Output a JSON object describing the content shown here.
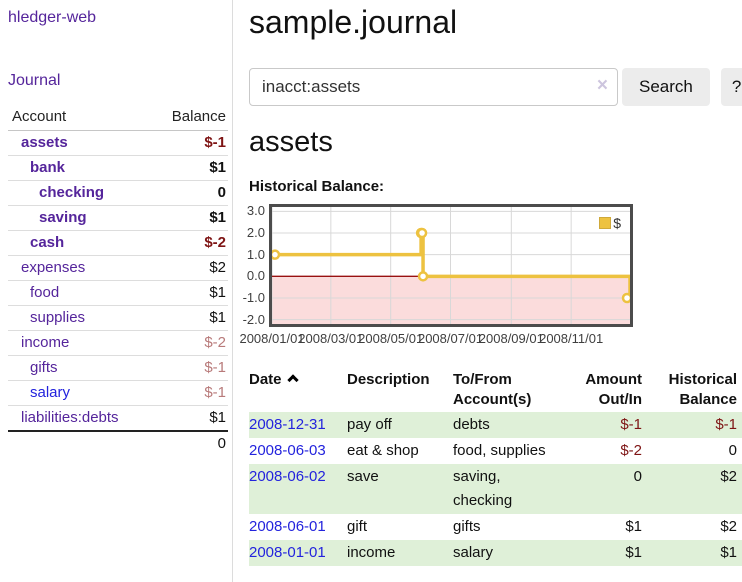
{
  "app": {
    "brand": "hledger-web",
    "nav_journal": "Journal"
  },
  "sidebar": {
    "header": {
      "account": "Account",
      "balance": "Balance"
    },
    "accounts": [
      {
        "name": "assets",
        "depth": 0,
        "bold": true,
        "link": "purple",
        "balance": "$-1",
        "tone": "neg-strong"
      },
      {
        "name": "bank",
        "depth": 1,
        "bold": true,
        "link": "purple",
        "balance": "$1",
        "tone": ""
      },
      {
        "name": "checking",
        "depth": 2,
        "bold": true,
        "link": "purple",
        "balance": "0",
        "tone": ""
      },
      {
        "name": "saving",
        "depth": 2,
        "bold": true,
        "link": "purple",
        "balance": "$1",
        "tone": ""
      },
      {
        "name": "cash",
        "depth": 1,
        "bold": true,
        "link": "purple",
        "balance": "$-2",
        "tone": "neg-strong"
      },
      {
        "name": "expenses",
        "depth": 0,
        "bold": false,
        "link": "purple",
        "balance": "$2",
        "tone": ""
      },
      {
        "name": "food",
        "depth": 1,
        "bold": false,
        "link": "purple",
        "balance": "$1",
        "tone": ""
      },
      {
        "name": "supplies",
        "depth": 1,
        "bold": false,
        "link": "purple",
        "balance": "$1",
        "tone": ""
      },
      {
        "name": "income",
        "depth": 0,
        "bold": false,
        "link": "purple",
        "balance": "$-2",
        "tone": "neg-soft"
      },
      {
        "name": "gifts",
        "depth": 1,
        "bold": false,
        "link": "purple",
        "balance": "$-1",
        "tone": "neg-soft"
      },
      {
        "name": "salary",
        "depth": 1,
        "bold": false,
        "link": "blue",
        "balance": "$-1",
        "tone": "neg-soft"
      },
      {
        "name": "liabilities:debts",
        "depth": 0,
        "bold": false,
        "link": "purple",
        "balance": "$1",
        "tone": ""
      }
    ],
    "total": "0"
  },
  "main": {
    "title": "sample.journal",
    "search": {
      "value": "inacct:assets",
      "clear_icon": "×",
      "button": "Search",
      "help": "?"
    },
    "account_heading": "assets",
    "chart_title": "Historical Balance:"
  },
  "chart_data": {
    "type": "line",
    "step": true,
    "title": "Historical Balance:",
    "series": [
      {
        "name": "$",
        "color": "#edc240",
        "points": [
          {
            "x": "2008-01-01",
            "y": 1
          },
          {
            "x": "2008-06-01",
            "y": 2
          },
          {
            "x": "2008-06-02",
            "y": 2
          },
          {
            "x": "2008-06-03",
            "y": 0
          },
          {
            "x": "2008-12-31",
            "y": -1
          }
        ]
      }
    ],
    "x_range": [
      "2008-01-01",
      "2008-12-31"
    ],
    "x_ticks": [
      {
        "label": "2008/01/01",
        "date": "2008-01-01"
      },
      {
        "label": "2008/03/01",
        "date": "2008-03-01"
      },
      {
        "label": "2008/05/01",
        "date": "2008-05-01"
      },
      {
        "label": "2008/07/01",
        "date": "2008-07-01"
      },
      {
        "label": "2008/09/01",
        "date": "2008-09-01"
      },
      {
        "label": "2008/11/01",
        "date": "2008-11-01"
      }
    ],
    "y_ticks": [
      {
        "label": "3.0",
        "value": 3
      },
      {
        "label": "2.0",
        "value": 2
      },
      {
        "label": "1.0",
        "value": 1
      },
      {
        "label": "0.0",
        "value": 0
      },
      {
        "label": "-1.0",
        "value": -1
      },
      {
        "label": "-2.0",
        "value": -2
      }
    ],
    "ylim": [
      -2.2,
      3.2
    ],
    "legend": {
      "position": "top-right",
      "label": "$"
    },
    "colors": {
      "negative_region": "#fbdcdc",
      "zero_line": "#991111",
      "grid": "#d8d8d8",
      "border": "#4c4c4c",
      "line": "#edc240"
    }
  },
  "register": {
    "headers": {
      "date": "Date",
      "description": "Description",
      "account_line1": "To/From",
      "account_line2": "Account(s)",
      "amount_line1": "Amount",
      "amount_line2": "Out/In",
      "balance_line1": "Historical",
      "balance_line2": "Balance"
    },
    "rows": [
      {
        "date": "2008-12-31",
        "description": "pay off",
        "accounts": "debts",
        "amount": "$-1",
        "amount_negative": true,
        "balance": "$-1",
        "balance_negative": true
      },
      {
        "date": "2008-06-03",
        "description": "eat & shop",
        "accounts": "food, supplies",
        "amount": "$-2",
        "amount_negative": true,
        "balance": "0",
        "balance_negative": false
      },
      {
        "date": "2008-06-02",
        "description": "save",
        "accounts": "saving, checking",
        "amount": "0",
        "amount_negative": false,
        "balance": "$2",
        "balance_negative": false
      },
      {
        "date": "2008-06-01",
        "description": "gift",
        "accounts": "gifts",
        "amount": "$1",
        "amount_negative": false,
        "balance": "$2",
        "balance_negative": false
      },
      {
        "date": "2008-01-01",
        "description": "income",
        "accounts": "salary",
        "amount": "$1",
        "amount_negative": false,
        "balance": "$1",
        "balance_negative": false
      }
    ]
  }
}
